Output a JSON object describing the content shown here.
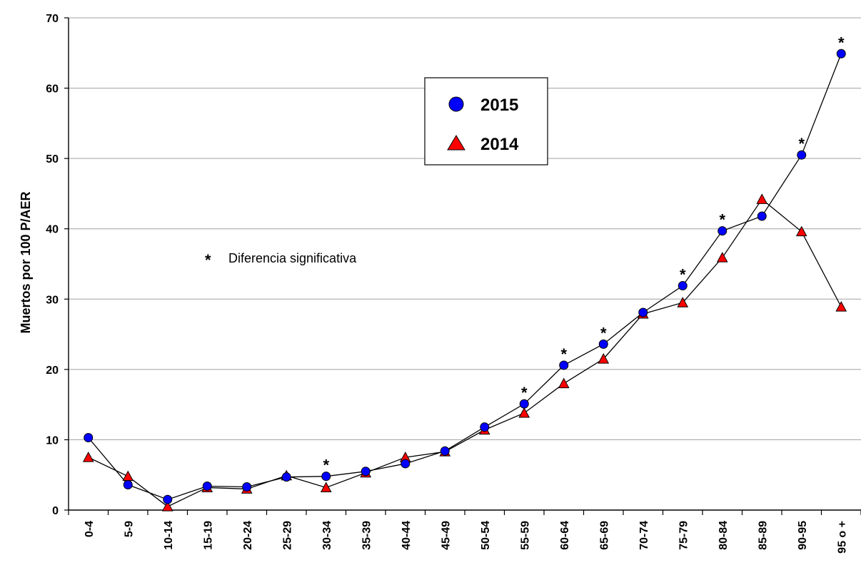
{
  "chart_data": {
    "type": "line",
    "title": "",
    "xlabel": "",
    "ylabel": "Muertos por 100 P/AER",
    "ylim": [
      0,
      70
    ],
    "yticks": [
      0,
      10,
      20,
      30,
      40,
      50,
      60,
      70
    ],
    "grid": "horizontal",
    "legend_position": "top-center",
    "categories": [
      "0-4",
      "5-9",
      "10-14",
      "15-19",
      "20-24",
      "25-29",
      "30-34",
      "35-39",
      "40-44",
      "45-49",
      "50-54",
      "55-59",
      "60-64",
      "65-69",
      "70-74",
      "75-79",
      "80-84",
      "85-89",
      "90-95",
      "95 o +"
    ],
    "series": [
      {
        "name": "2015",
        "marker": "circle",
        "color": "#0000ff",
        "values": [
          10.3,
          3.6,
          1.5,
          3.4,
          3.3,
          4.7,
          4.8,
          5.5,
          6.6,
          8.4,
          11.8,
          15.1,
          20.6,
          23.6,
          28.1,
          31.9,
          39.7,
          41.8,
          50.5,
          64.9
        ]
      },
      {
        "name": "2014",
        "marker": "triangle",
        "color": "#ff0000",
        "values": [
          7.5,
          4.8,
          0.5,
          3.2,
          3.0,
          4.9,
          3.2,
          5.3,
          7.5,
          8.3,
          11.4,
          13.8,
          18.0,
          21.5,
          27.9,
          29.5,
          35.9,
          44.2,
          39.6,
          28.9
        ]
      }
    ],
    "significant_marker": "*",
    "significant_categories": [
      "30-34",
      "55-59",
      "60-64",
      "65-69",
      "75-79",
      "80-84",
      "90-95",
      "95 o +"
    ],
    "annotation": "Diferencia significativa"
  },
  "colors": {
    "line": "#000000",
    "grid": "#a0a0a0",
    "circle_fill": "#0000ff",
    "triangle_fill": "#ff0000"
  }
}
